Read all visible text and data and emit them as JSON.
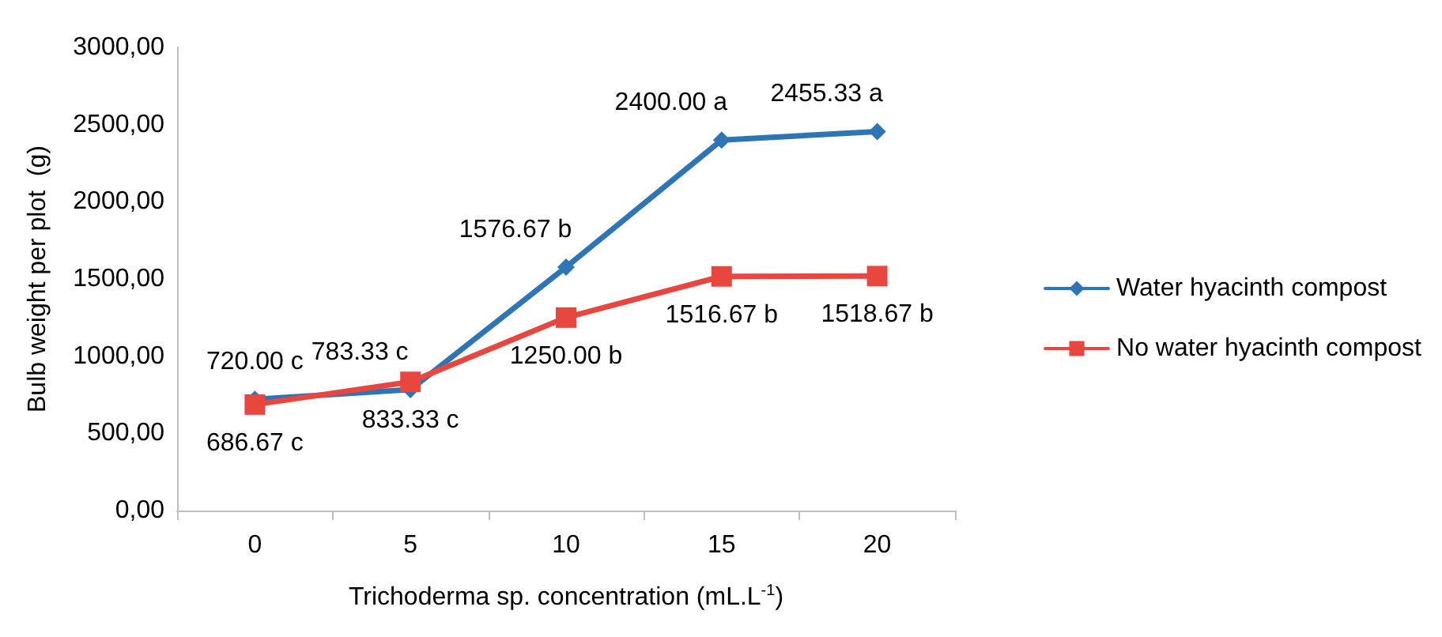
{
  "chart_data": {
    "type": "line",
    "xlabel": "Trichoderma sp. concentration (mL.L$^{-1}$)",
    "ylabel": "Bulb weight per plot  (g)",
    "categories": [
      "0",
      "5",
      "10",
      "15",
      "20"
    ],
    "series": [
      {
        "name": "Water hyacinth compost",
        "color": "#2e75b6",
        "marker": "diamond",
        "values": [
          720,
          783.33,
          1576.67,
          2400,
          2455.33
        ],
        "value_labels": [
          "720.00 c",
          "783.33 c",
          "1576.67 b",
          "2400.00 a",
          "2455.33 a"
        ]
      },
      {
        "name": "No water hyacinth compost",
        "color": "#e8473f",
        "marker": "square",
        "values": [
          686.67,
          833.33,
          1250,
          1516.67,
          1518.67
        ],
        "value_labels": [
          "686.67 c",
          "833.33 c",
          "1250.00 b",
          "1516.67 b",
          "1518.67 b"
        ]
      }
    ],
    "ylim": [
      0,
      3000
    ],
    "yticks": [
      {
        "value": 0,
        "label": "0,00"
      },
      {
        "value": 500,
        "label": "500,00"
      },
      {
        "value": 1000,
        "label": "1000,00"
      },
      {
        "value": 1500,
        "label": "1500,00"
      },
      {
        "value": 2000,
        "label": "2000,00"
      },
      {
        "value": 2500,
        "label": "2500,00"
      },
      {
        "value": 3000,
        "label": "3000,00"
      }
    ],
    "grid": false,
    "legend": "right",
    "line_style": "solid"
  }
}
